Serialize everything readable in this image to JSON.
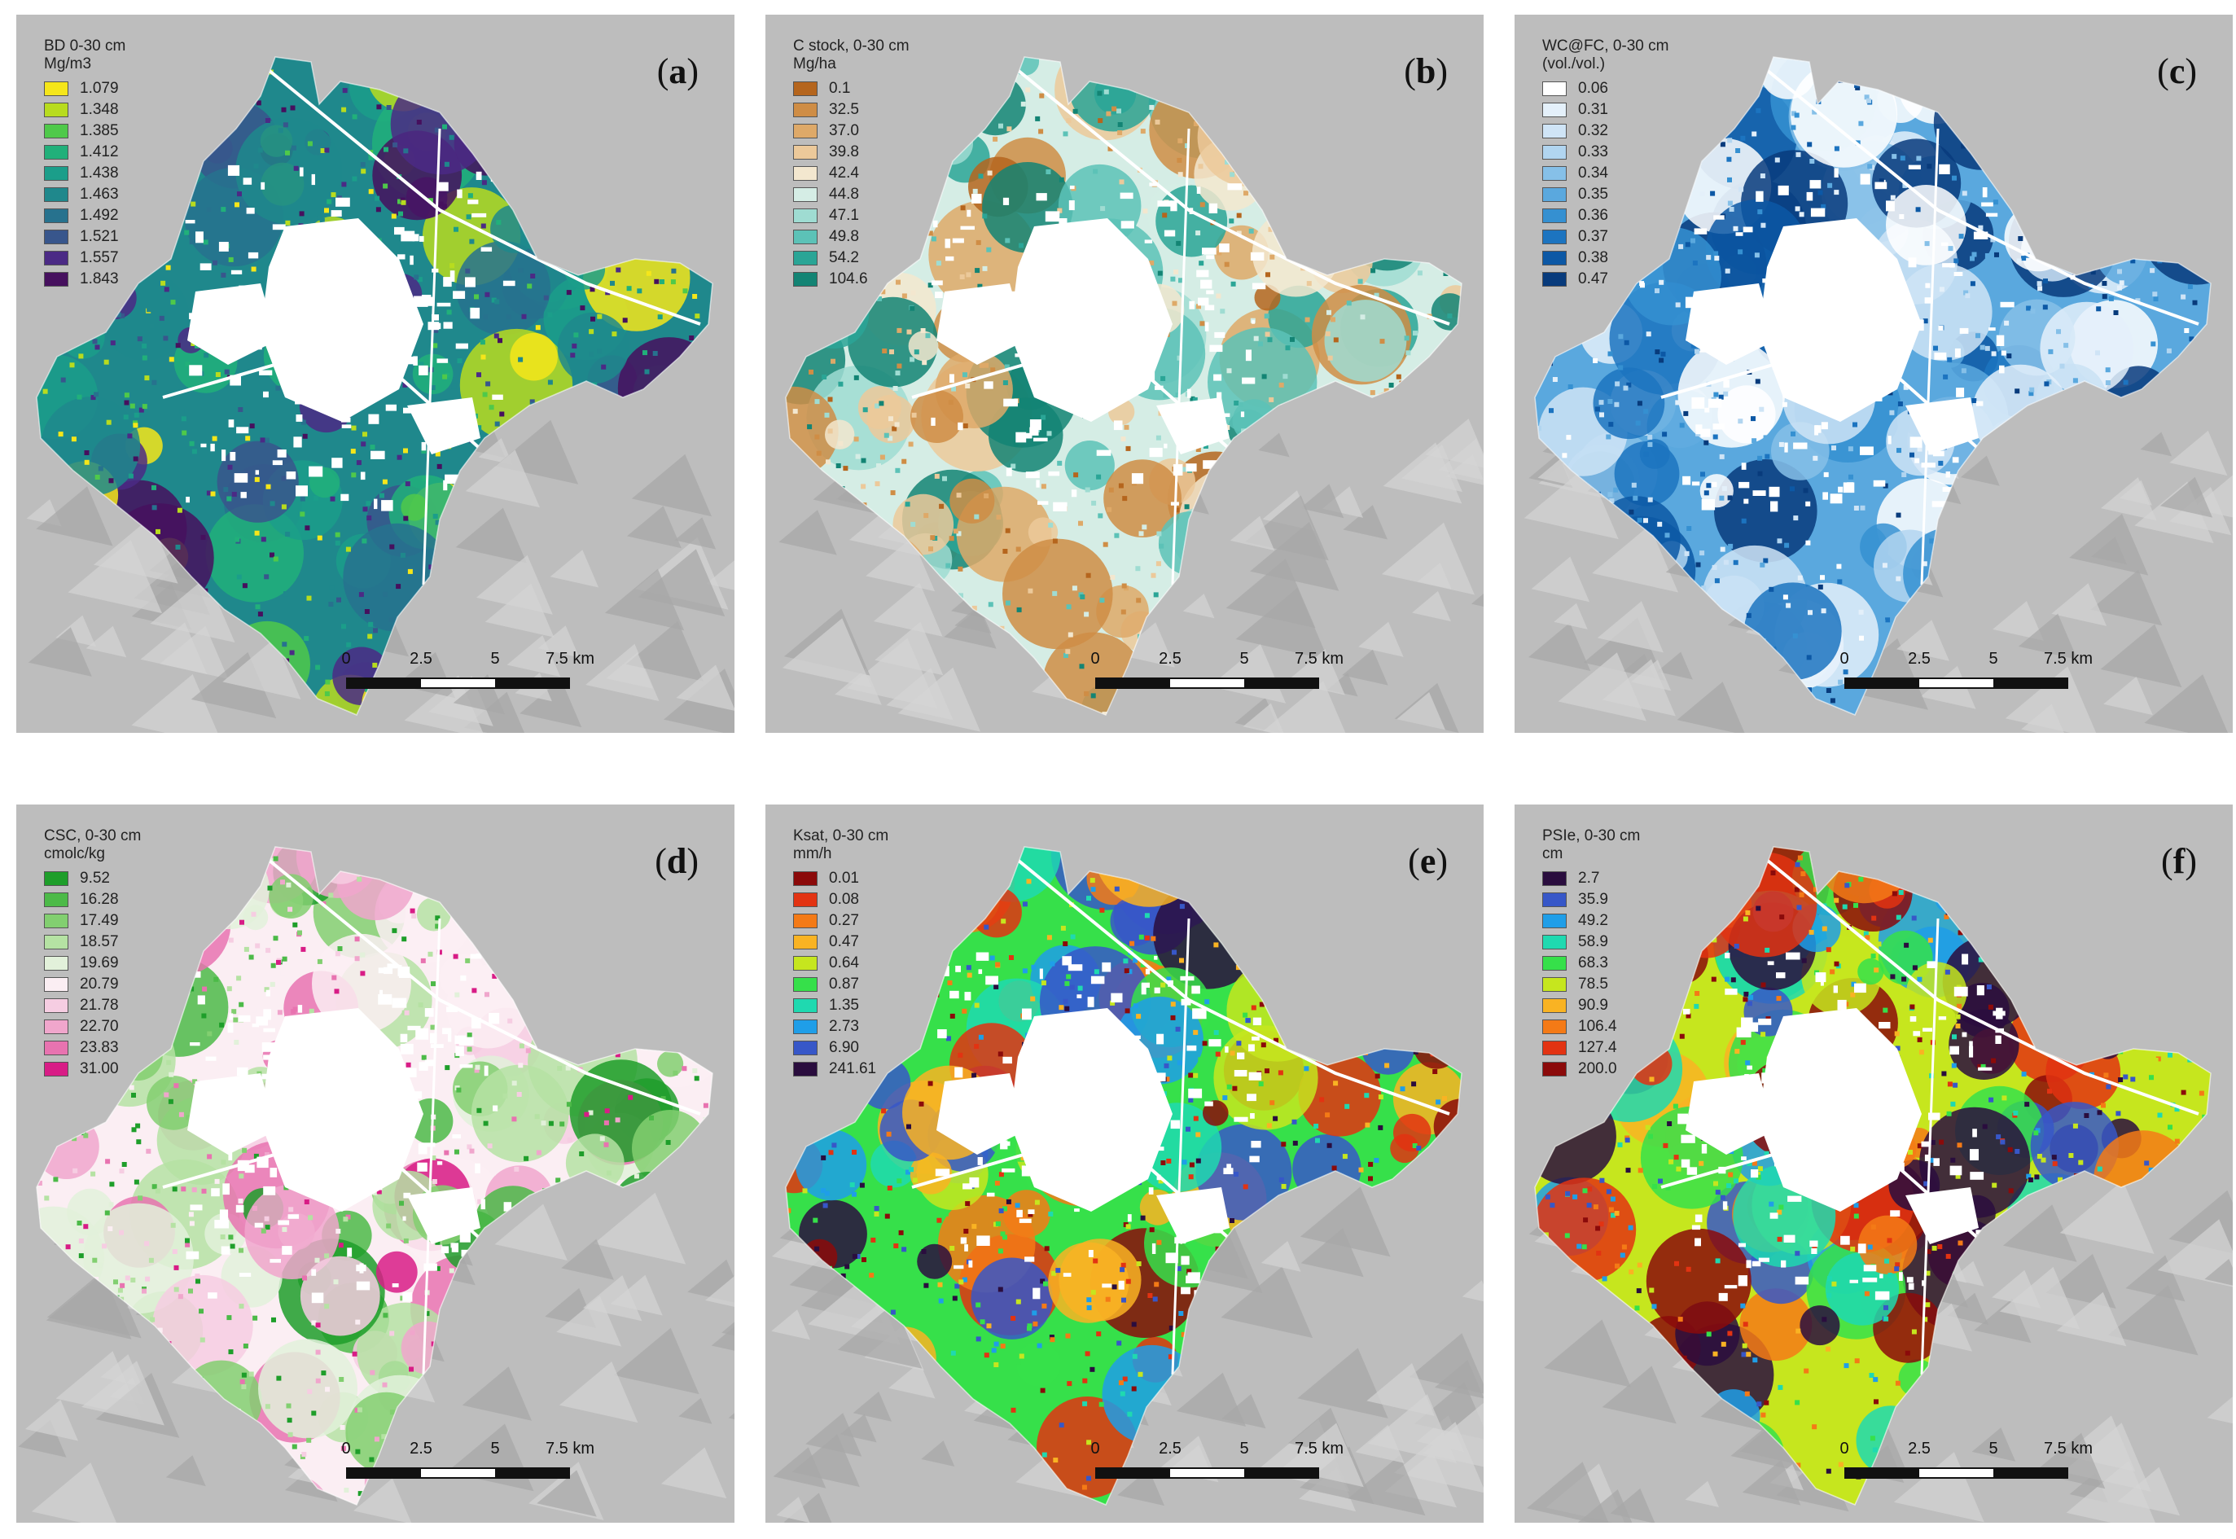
{
  "panels": [
    {
      "letter": "a",
      "legend_title": "BD 0-30 cm",
      "legend_unit": "Mg/m3",
      "legend": [
        {
          "value": "1.079",
          "color": "#f5e61a"
        },
        {
          "value": "1.348",
          "color": "#b8dc1e"
        },
        {
          "value": "1.385",
          "color": "#4fc94a"
        },
        {
          "value": "1.412",
          "color": "#21b07a"
        },
        {
          "value": "1.438",
          "color": "#1b9e8a"
        },
        {
          "value": "1.463",
          "color": "#1f888c"
        },
        {
          "value": "1.492",
          "color": "#27728e"
        },
        {
          "value": "1.521",
          "color": "#38568c"
        },
        {
          "value": "1.557",
          "color": "#4b2a85"
        },
        {
          "value": "1.843",
          "color": "#46105e"
        }
      ]
    },
    {
      "letter": "b",
      "legend_title": "C stock, 0-30 cm",
      "legend_unit": "Mg/ha",
      "legend": [
        {
          "value": "0.1",
          "color": "#b5651d"
        },
        {
          "value": "32.5",
          "color": "#cf8d45"
        },
        {
          "value": "37.0",
          "color": "#dea968"
        },
        {
          "value": "39.8",
          "color": "#ecc99a"
        },
        {
          "value": "42.4",
          "color": "#f3e7cf"
        },
        {
          "value": "44.8",
          "color": "#d5ede5"
        },
        {
          "value": "47.1",
          "color": "#9fdcd2"
        },
        {
          "value": "49.8",
          "color": "#5cc2b7"
        },
        {
          "value": "54.2",
          "color": "#2aa596"
        },
        {
          "value": "104.6",
          "color": "#138474"
        }
      ]
    },
    {
      "letter": "c",
      "legend_title": "WC@FC, 0-30 cm",
      "legend_unit": "(vol./vol.)",
      "legend": [
        {
          "value": "0.06",
          "color": "#ffffff"
        },
        {
          "value": "0.31",
          "color": "#e4f0fa"
        },
        {
          "value": "0.32",
          "color": "#cfe4f6"
        },
        {
          "value": "0.33",
          "color": "#b1d5f0"
        },
        {
          "value": "0.34",
          "color": "#86c0e8"
        },
        {
          "value": "0.35",
          "color": "#5aa8de"
        },
        {
          "value": "0.36",
          "color": "#3590d1"
        },
        {
          "value": "0.37",
          "color": "#1c74c0"
        },
        {
          "value": "0.38",
          "color": "#0c58a5"
        },
        {
          "value": "0.47",
          "color": "#083b7c"
        }
      ]
    },
    {
      "letter": "d",
      "legend_title": "CSC, 0-30 cm",
      "legend_unit": "cmolc/kg",
      "legend": [
        {
          "value": "9.52",
          "color": "#1e9e2a"
        },
        {
          "value": "16.28",
          "color": "#4cba48"
        },
        {
          "value": "17.49",
          "color": "#82cf70"
        },
        {
          "value": "18.57",
          "color": "#b5e2a3"
        },
        {
          "value": "19.69",
          "color": "#e2f1da"
        },
        {
          "value": "20.79",
          "color": "#fbeef3"
        },
        {
          "value": "21.78",
          "color": "#f6cde2"
        },
        {
          "value": "22.70",
          "color": "#f0a6cc"
        },
        {
          "value": "23.83",
          "color": "#e873b0"
        },
        {
          "value": "31.00",
          "color": "#d81c86"
        }
      ]
    },
    {
      "letter": "e",
      "legend_title": "Ksat, 0-30 cm",
      "legend_unit": "mm/h",
      "legend": [
        {
          "value": "0.01",
          "color": "#8b0a0a"
        },
        {
          "value": "0.08",
          "color": "#e23312"
        },
        {
          "value": "0.27",
          "color": "#f47a16"
        },
        {
          "value": "0.47",
          "color": "#f9b323"
        },
        {
          "value": "0.64",
          "color": "#c6e61e"
        },
        {
          "value": "0.87",
          "color": "#36e04a"
        },
        {
          "value": "1.35",
          "color": "#1fd9b0"
        },
        {
          "value": "2.73",
          "color": "#1f9ee8"
        },
        {
          "value": "6.90",
          "color": "#3757c8"
        },
        {
          "value": "241.61",
          "color": "#2a0d3e"
        }
      ]
    },
    {
      "letter": "f",
      "legend_title": "PSIe, 0-30 cm",
      "legend_unit": "cm",
      "legend": [
        {
          "value": "2.7",
          "color": "#2a0d3e"
        },
        {
          "value": "35.9",
          "color": "#3757c8"
        },
        {
          "value": "49.2",
          "color": "#1f9ee8"
        },
        {
          "value": "58.9",
          "color": "#1fd9b0"
        },
        {
          "value": "68.3",
          "color": "#36e04a"
        },
        {
          "value": "78.5",
          "color": "#c6e61e"
        },
        {
          "value": "90.9",
          "color": "#f9b323"
        },
        {
          "value": "106.4",
          "color": "#f47a16"
        },
        {
          "value": "127.4",
          "color": "#e23312"
        },
        {
          "value": "200.0",
          "color": "#8b0a0a"
        }
      ]
    }
  ],
  "scale_bar": {
    "labels": [
      "0",
      "2.5",
      "5",
      "7.5 km"
    ]
  }
}
